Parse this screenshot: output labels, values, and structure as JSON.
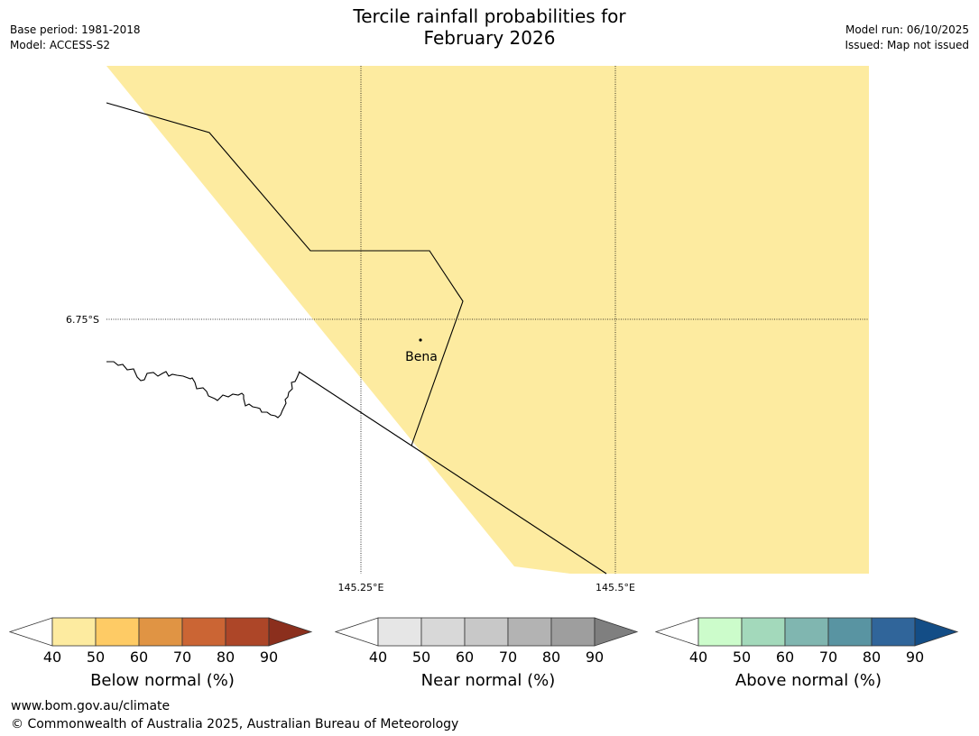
{
  "header": {
    "title_line1": "Tercile rainfall probabilities for",
    "title_line2": "February 2026",
    "base_period": "Base period: 1981-2018",
    "model": "Model: ACCESS-S2",
    "model_run": "Model run: 06/10/2025",
    "issued": "Issued: Map not issued"
  },
  "map": {
    "lat_label": "6.75°S",
    "lon_labels": [
      "145.25°E",
      "145.5°E"
    ],
    "place_name": "Bena",
    "shading_color": "#fdeba0",
    "category_shown": "Below normal 40–50%"
  },
  "colorbars": [
    {
      "label": "Below normal (%)",
      "ticks": [
        "40",
        "50",
        "60",
        "70",
        "80",
        "90"
      ],
      "colors": [
        "#ffffff",
        "#fdeba0",
        "#fecb65",
        "#e09444",
        "#cb6534",
        "#ad4628",
        "#8b2f1d"
      ]
    },
    {
      "label": "Near normal (%)",
      "ticks": [
        "40",
        "50",
        "60",
        "70",
        "80",
        "90"
      ],
      "colors": [
        "#ffffff",
        "#e6e6e6",
        "#d8d8d8",
        "#c8c8c8",
        "#b3b3b3",
        "#9e9e9e",
        "#7f7f7f"
      ]
    },
    {
      "label": "Above normal (%)",
      "ticks": [
        "40",
        "50",
        "60",
        "70",
        "80",
        "90"
      ],
      "colors": [
        "#ffffff",
        "#ccfccb",
        "#a3d9bb",
        "#80b6b0",
        "#5994a2",
        "#30659a",
        "#134d86"
      ]
    }
  ],
  "footer": {
    "url": "www.bom.gov.au/climate",
    "copyright": "© Commonwealth of Australia 2025, Australian Bureau of Meteorology"
  }
}
